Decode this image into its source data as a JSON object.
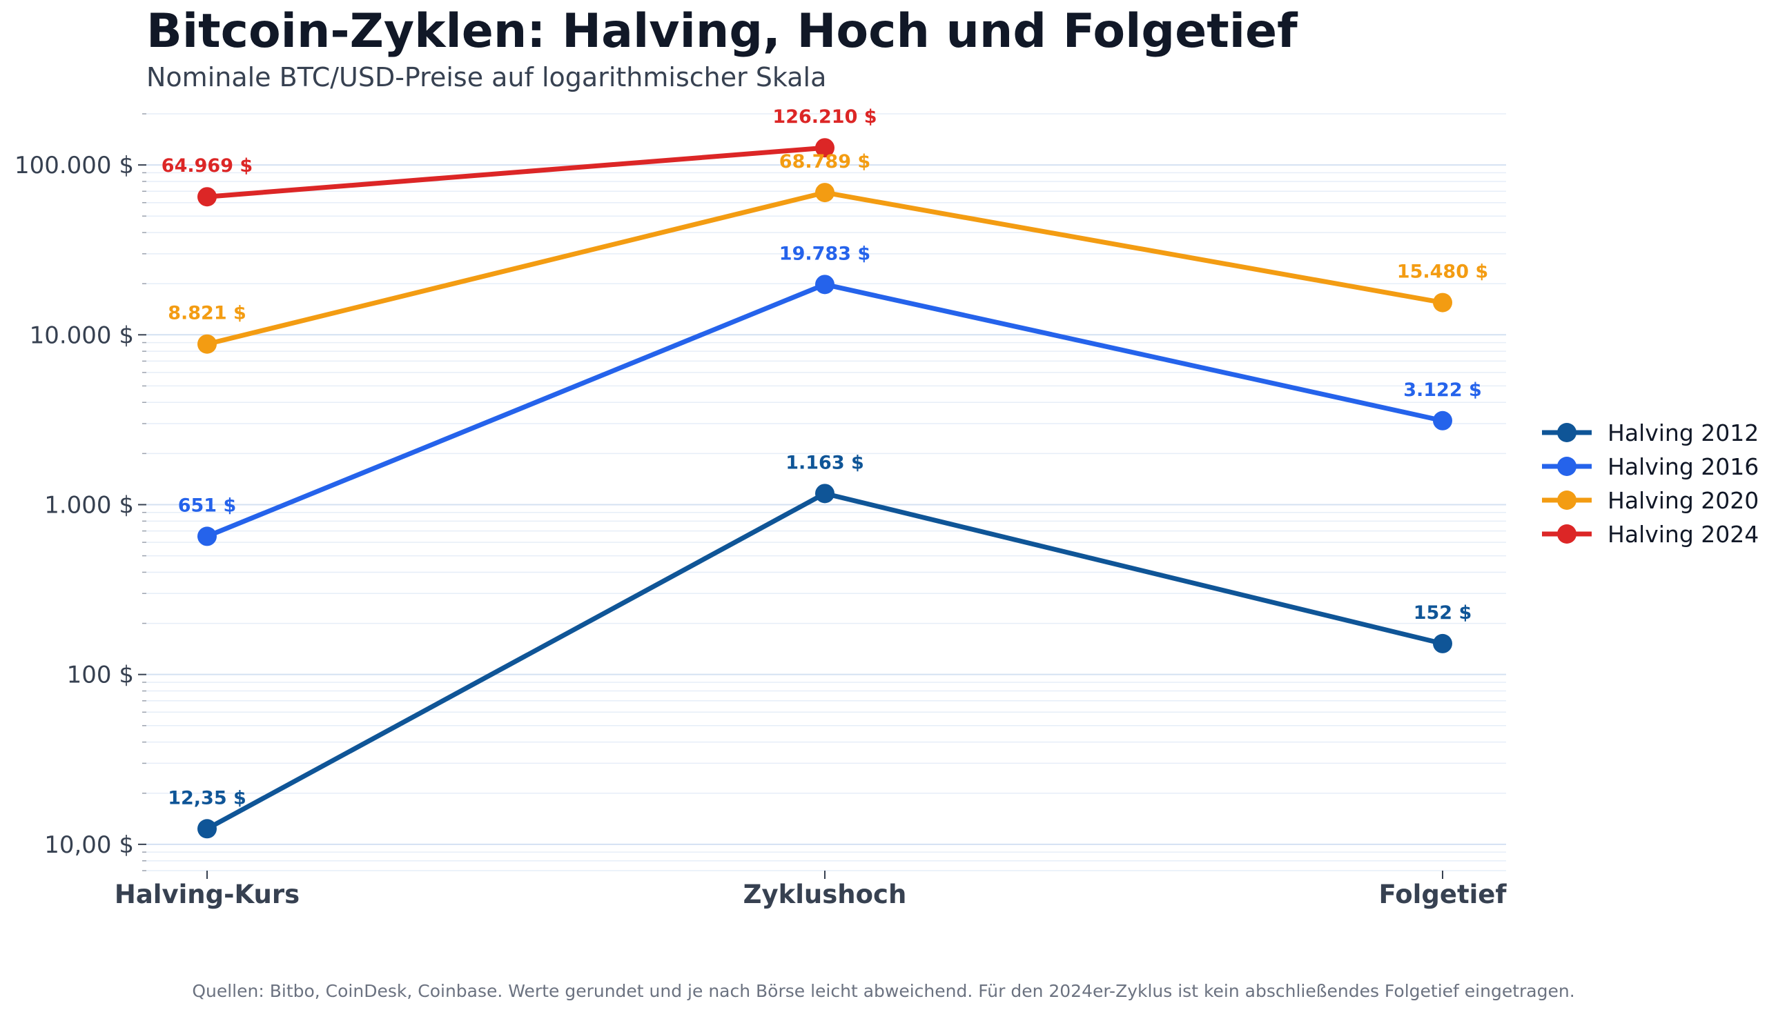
{
  "chart_data": {
    "type": "line",
    "title": "Bitcoin-Zyklen: Halving, Hoch und Folgetief",
    "subtitle": "Nominale BTC/USD-Preise auf logarithmischer Skala",
    "categories": [
      "Halving-Kurs",
      "Zyklushoch",
      "Folgetief"
    ],
    "y_scale": "log",
    "ylim": [
      7,
      200000
    ],
    "y_ticks": [
      {
        "value": 10,
        "label": "10,00 $"
      },
      {
        "value": 100,
        "label": "100 $"
      },
      {
        "value": 1000,
        "label": "1.000 $"
      },
      {
        "value": 10000,
        "label": "10.000 $"
      },
      {
        "value": 100000,
        "label": "100.000 $"
      }
    ],
    "grid": true,
    "legend_position": "right",
    "series": [
      {
        "name": "Halving 2012",
        "color": "#0f5597",
        "values": [
          12.35,
          1163,
          152
        ],
        "labels": [
          "12,35 $",
          "1.163 $",
          "152 $"
        ]
      },
      {
        "name": "Halving 2016",
        "color": "#2563eb",
        "values": [
          651,
          19783,
          3122
        ],
        "labels": [
          "651 $",
          "19.783 $",
          "3.122 $"
        ]
      },
      {
        "name": "Halving 2020",
        "color": "#f39c12",
        "values": [
          8821,
          68789,
          15480
        ],
        "labels": [
          "8.821 $",
          "68.789 $",
          "15.480 $"
        ]
      },
      {
        "name": "Halving 2024",
        "color": "#dc2626",
        "values": [
          64969,
          126210,
          null
        ],
        "labels": [
          "64.969 $",
          "126.210 $",
          null
        ]
      }
    ],
    "footer": "Quellen: Bitbo, CoinDesk, Coinbase. Werte gerundet und je nach Börse leicht abweichend. Für den 2024er-Zyklus ist kein abschließendes Folgetief eingetragen."
  }
}
